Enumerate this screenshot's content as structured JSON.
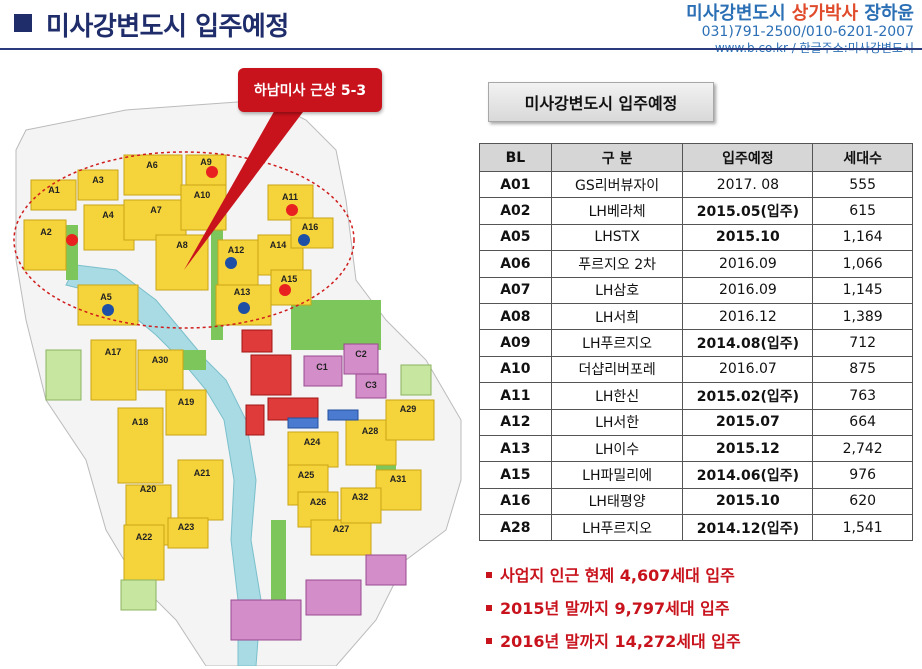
{
  "header": {
    "title": "미사강변도시 입주예정",
    "brand": {
      "part1": "미사강변도시 ",
      "part2": "상가박사",
      "part3": " 장하윤",
      "phone": "031)791-2500/010-6201-2007",
      "web": "www.b.co.kr / 한글주소:미사강변도시"
    }
  },
  "map": {
    "callout": "하남미사 근상 5-3",
    "block_labels": [
      "A1",
      "A2",
      "A3",
      "A4",
      "A5",
      "A6",
      "A7",
      "A8",
      "A9",
      "A10",
      "A11",
      "A12",
      "A13",
      "A14",
      "A15",
      "A16",
      "A17",
      "A18",
      "A19",
      "A20",
      "A21",
      "A22",
      "A23",
      "A24",
      "A25",
      "A26",
      "A27",
      "A28",
      "A29",
      "A30",
      "A31",
      "A32",
      "C1",
      "C2",
      "C3"
    ],
    "colors": {
      "residential": "#f5d33a",
      "road": "#f4f4f4",
      "water": "#a8dbe4",
      "green": "#7cc65b",
      "commercial": "#e03b3b",
      "public": "#d38ec9",
      "marker_red": "#e82020",
      "marker_blue": "#1e4fa6"
    }
  },
  "table": {
    "title": "미사강변도시 입주예정",
    "headers": [
      "BL",
      "구 분",
      "입주예정",
      "세대수"
    ],
    "rows": [
      {
        "bl": "A01",
        "name": "GS리버뷰자이",
        "date": "2017. 08",
        "status": "",
        "count": "555"
      },
      {
        "bl": "A02",
        "name": "LH베라체",
        "date": "2015.05(입주)",
        "status": "red",
        "count": "615"
      },
      {
        "bl": "A05",
        "name": "LHSTX",
        "date": "2015.10",
        "status": "blue",
        "count": "1,164"
      },
      {
        "bl": "A06",
        "name": "푸르지오 2차",
        "date": "2016.09",
        "status": "",
        "count": "1,066"
      },
      {
        "bl": "A07",
        "name": "LH삼호",
        "date": "2016.09",
        "status": "",
        "count": "1,145"
      },
      {
        "bl": "A08",
        "name": "LH서희",
        "date": "2016.12",
        "status": "",
        "count": "1,389"
      },
      {
        "bl": "A09",
        "name": "LH푸르지오",
        "date": "2014.08(입주)",
        "status": "red",
        "count": "712"
      },
      {
        "bl": "A10",
        "name": "더샵리버포레",
        "date": "2016.07",
        "status": "",
        "count": "875"
      },
      {
        "bl": "A11",
        "name": "LH한신",
        "date": "2015.02(입주)",
        "status": "red",
        "count": "763"
      },
      {
        "bl": "A12",
        "name": "LH서한",
        "date": "2015.07",
        "status": "blue",
        "count": "664"
      },
      {
        "bl": "A13",
        "name": "LH이수",
        "date": "2015.12",
        "status": "blue",
        "count": "2,742"
      },
      {
        "bl": "A15",
        "name": "LH파밀리에",
        "date": "2014.06(입주)",
        "status": "red",
        "count": "976"
      },
      {
        "bl": "A16",
        "name": "LH태평양",
        "date": "2015.10",
        "status": "blue",
        "count": "620"
      },
      {
        "bl": "A28",
        "name": "LH푸르지오",
        "date": "2014.12(입주)",
        "status": "red",
        "count": "1,541"
      }
    ]
  },
  "summary": [
    "사업지 인근 현제 4,607세대 입주",
    "2015년 말까지 9,797세대 입주",
    "2016년 말까지 14,272세대 입주"
  ]
}
